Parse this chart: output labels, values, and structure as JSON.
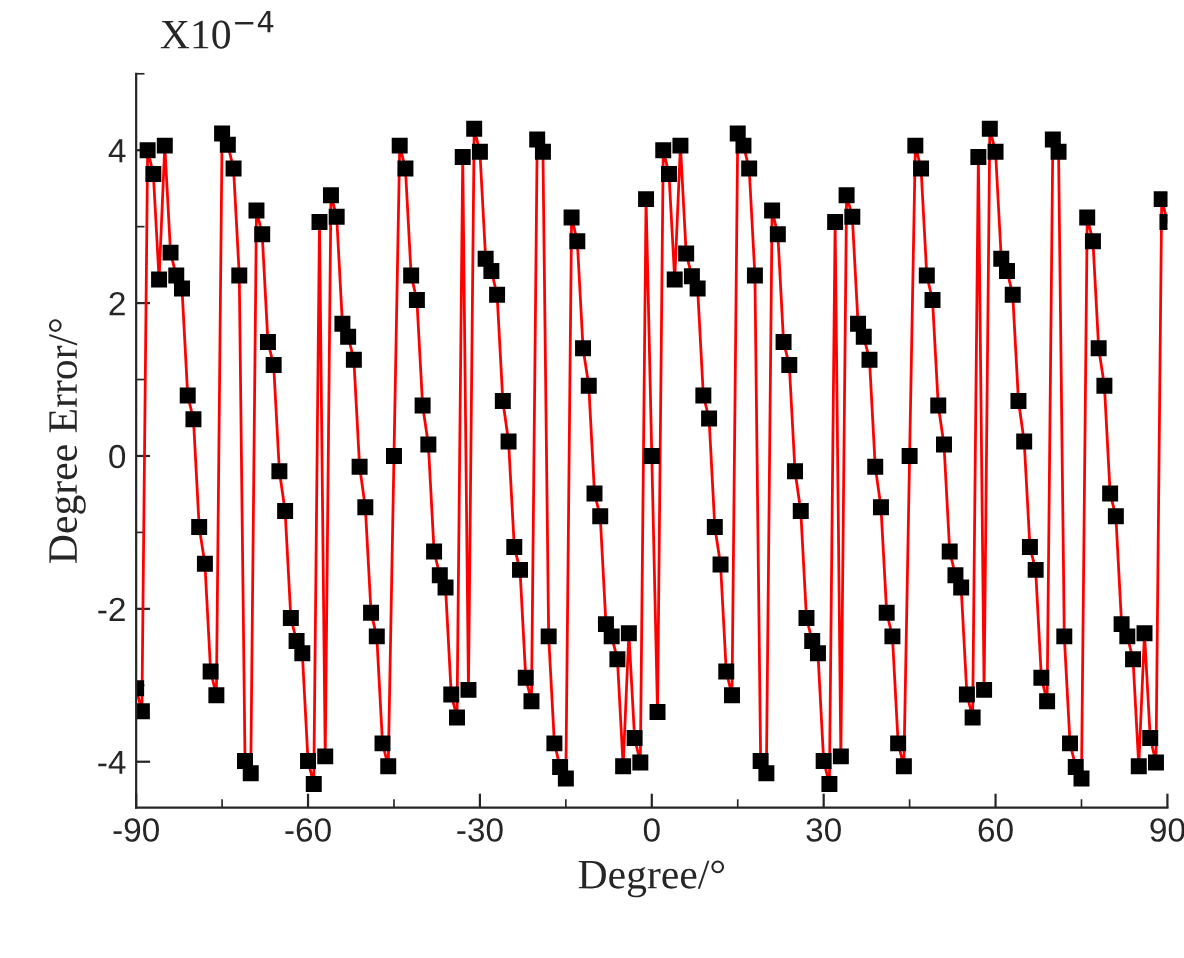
{
  "chart_data": {
    "type": "line",
    "xlabel": "Degree/°",
    "ylabel": "Degree Error/°",
    "annotations": [
      "X10$^{−4}$"
    ],
    "x": [
      -90,
      -89,
      -88,
      -87,
      -86,
      -85,
      -84,
      -83,
      -82,
      -81,
      -80,
      -79,
      -78,
      -77,
      -76,
      -75,
      -74,
      -73,
      -72,
      -71,
      -70,
      -69,
      -68,
      -67,
      -66,
      -65,
      -64,
      -63,
      -62,
      -61,
      -60,
      -59,
      -58,
      -57,
      -56,
      -55,
      -54,
      -53,
      -52,
      -51,
      -50,
      -49,
      -48,
      -47,
      -46,
      -45,
      -44,
      -43,
      -42,
      -41,
      -40,
      -39,
      -38,
      -37,
      -36,
      -35,
      -34,
      -33,
      -32,
      -31,
      -30,
      -29,
      -28,
      -27,
      -26,
      -25,
      -24,
      -23,
      -22,
      -21,
      -20,
      -19,
      -18,
      -17,
      -16,
      -15,
      -14,
      -13,
      -12,
      -11,
      -10,
      -9,
      -8,
      -7,
      -6,
      -5,
      -4,
      -3,
      -2,
      -1,
      0,
      1,
      2,
      3,
      4,
      5,
      6,
      7,
      8,
      9,
      10,
      11,
      12,
      13,
      14,
      15,
      16,
      17,
      18,
      19,
      20,
      21,
      22,
      23,
      24,
      25,
      26,
      27,
      28,
      29,
      30,
      31,
      32,
      33,
      34,
      35,
      36,
      37,
      38,
      39,
      40,
      41,
      42,
      43,
      44,
      45,
      46,
      47,
      48,
      49,
      50,
      51,
      52,
      53,
      54,
      55,
      56,
      57,
      58,
      59,
      60,
      61,
      62,
      63,
      64,
      65,
      66,
      67,
      68,
      69,
      70,
      71,
      72,
      73,
      74,
      75,
      76,
      77,
      78,
      79,
      80,
      81,
      82,
      83,
      84,
      85,
      86,
      87,
      88,
      89,
      90
    ],
    "series": [
      {
        "color": "#ff0000",
        "values": [
          -3.04,
          -3.34,
          4.0,
          3.69,
          2.31,
          4.06,
          2.66,
          2.36,
          2.19,
          0.79,
          0.48,
          -0.93,
          -1.41,
          -2.82,
          -3.13,
          4.22,
          4.07,
          3.76,
          2.36,
          -3.99,
          -4.15,
          3.21,
          2.9,
          1.49,
          1.19,
          -0.2,
          -0.72,
          -2.12,
          -2.42,
          -2.58,
          -3.99,
          -4.29,
          3.06,
          -3.93,
          3.41,
          3.13,
          1.73,
          1.56,
          1.26,
          -0.14,
          -0.67,
          -2.05,
          -2.36,
          -3.76,
          -4.06,
          0.0,
          4.06,
          3.76,
          2.36,
          2.04,
          0.66,
          0.15,
          -1.25,
          -1.56,
          -1.72,
          -3.12,
          -3.42,
          3.91,
          -3.06,
          4.28,
          3.98,
          2.58,
          2.42,
          2.11,
          0.72,
          0.19,
          -1.19,
          -1.49,
          -2.9,
          -3.21,
          4.14,
          3.98,
          -2.36,
          -3.76,
          -4.07,
          -4.22,
          3.12,
          2.81,
          1.41,
          0.92,
          -0.49,
          -0.79,
          -2.2,
          -2.36,
          -2.66,
          -4.06,
          -2.32,
          -3.69,
          -4.01,
          3.36,
          0.0,
          -3.35,
          4.0,
          3.69,
          2.31,
          4.06,
          2.65,
          2.35,
          2.19,
          0.79,
          0.49,
          -0.93,
          -1.42,
          -2.82,
          -3.13,
          4.22,
          4.06,
          3.76,
          2.36,
          -3.99,
          -4.15,
          3.21,
          2.9,
          1.49,
          1.19,
          -0.2,
          -0.72,
          -2.12,
          -2.42,
          -2.58,
          -3.99,
          -4.29,
          3.06,
          -3.93,
          3.41,
          3.13,
          1.73,
          1.56,
          1.26,
          -0.14,
          -0.67,
          -2.05,
          -2.36,
          -3.76,
          -4.06,
          0.0,
          4.06,
          3.76,
          2.36,
          2.04,
          0.66,
          0.15,
          -1.25,
          -1.56,
          -1.72,
          -3.12,
          -3.42,
          3.91,
          -3.06,
          4.28,
          3.98,
          2.58,
          2.42,
          2.11,
          0.72,
          0.19,
          -1.19,
          -1.49,
          -2.9,
          -3.21,
          4.14,
          3.98,
          -2.36,
          -3.76,
          -4.07,
          -4.22,
          3.12,
          2.81,
          1.41,
          0.92,
          -0.49,
          -0.79,
          -2.2,
          -2.36,
          -2.66,
          -4.06,
          -2.32,
          -3.69,
          -4.01,
          3.36,
          3.06
        ]
      }
    ],
    "xlim": [
      -90,
      90
    ],
    "xticks": [
      -90,
      -60,
      -30,
      0,
      30,
      60,
      90
    ],
    "ylim": [
      -4.6,
      5
    ],
    "yticks": [
      -4,
      -2,
      0,
      2,
      4
    ],
    "marker": "square",
    "line_style": "solid",
    "grid": false,
    "legend": false
  }
}
